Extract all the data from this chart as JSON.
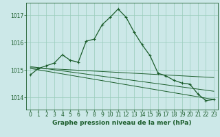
{
  "background_color": "#cce8e8",
  "grid_color": "#99ccbb",
  "line_color": "#1a5c2a",
  "title": "Graphe pression niveau de la mer (hPa)",
  "xlim": [
    -0.5,
    23.5
  ],
  "ylim": [
    1013.55,
    1017.45
  ],
  "yticks": [
    1014,
    1015,
    1016,
    1017
  ],
  "xticks": [
    0,
    1,
    2,
    3,
    4,
    5,
    6,
    7,
    8,
    9,
    10,
    11,
    12,
    13,
    14,
    15,
    16,
    17,
    18,
    19,
    20,
    21,
    22,
    23
  ],
  "series1_x": [
    0,
    1,
    2,
    3,
    4,
    5,
    6,
    7,
    8,
    9,
    10,
    11,
    12,
    13,
    14,
    15,
    16,
    17,
    18,
    19,
    20,
    21,
    22,
    23
  ],
  "series1_y": [
    1014.82,
    1015.05,
    1015.15,
    1015.25,
    1015.55,
    1015.35,
    1015.28,
    1016.05,
    1016.12,
    1016.65,
    1016.92,
    1017.22,
    1016.92,
    1016.38,
    1015.92,
    1015.52,
    1014.88,
    1014.78,
    1014.62,
    1014.52,
    1014.48,
    1014.12,
    1013.88,
    1013.92
  ],
  "trend1_x": [
    0,
    23
  ],
  "trend1_y": [
    1015.08,
    1014.72
  ],
  "trend2_x": [
    0,
    23
  ],
  "trend2_y": [
    1015.05,
    1013.92
  ],
  "trend3_x": [
    0,
    23
  ],
  "trend3_y": [
    1015.12,
    1014.22
  ],
  "font_size_title": 6.5,
  "font_size_ticks": 5.5,
  "marker": "+"
}
